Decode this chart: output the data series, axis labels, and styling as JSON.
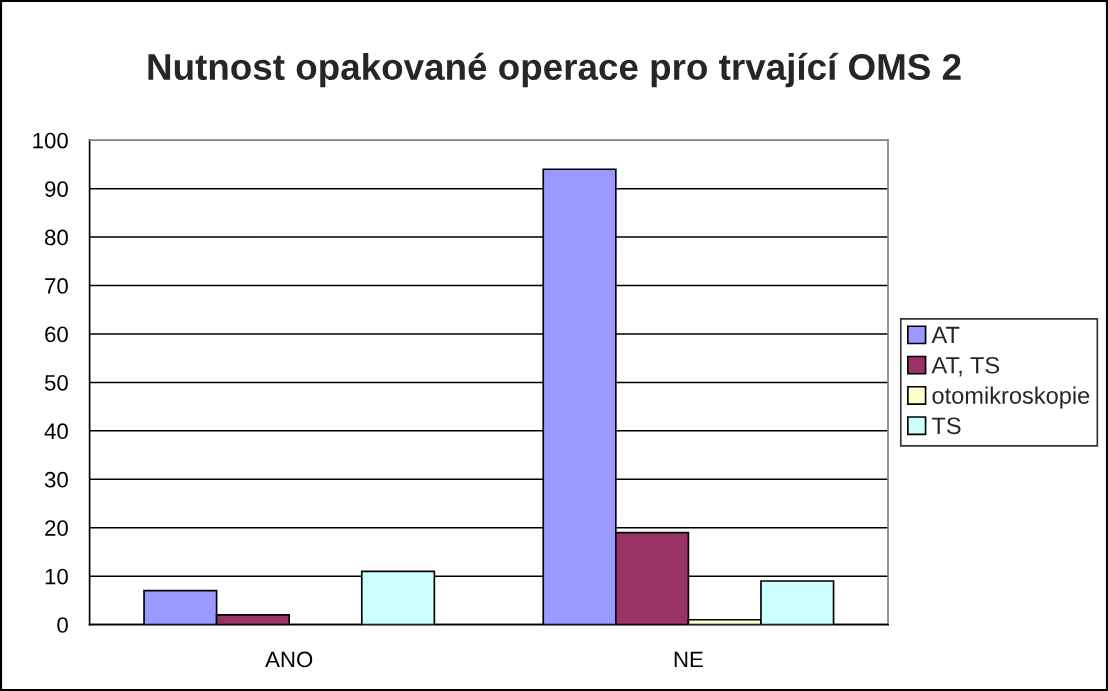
{
  "chart_data": {
    "type": "bar",
    "title": "Nutnost opakované operace pro trvající OMS 2",
    "categories": [
      "ANO",
      "NE"
    ],
    "series": [
      {
        "name": "AT",
        "color": "#9999ff",
        "values": [
          7,
          94
        ]
      },
      {
        "name": "AT, TS",
        "color": "#993366",
        "values": [
          2,
          19
        ]
      },
      {
        "name": "otomikroskopie",
        "color": "#ffffcc",
        "values": [
          null,
          1
        ]
      },
      {
        "name": "TS",
        "color": "#ccffff",
        "values": [
          11,
          9
        ]
      }
    ],
    "ylim": [
      0,
      100
    ],
    "yticks": [
      0,
      10,
      20,
      30,
      40,
      50,
      60,
      70,
      80,
      90,
      100
    ],
    "grid": "y",
    "legend": "right"
  }
}
